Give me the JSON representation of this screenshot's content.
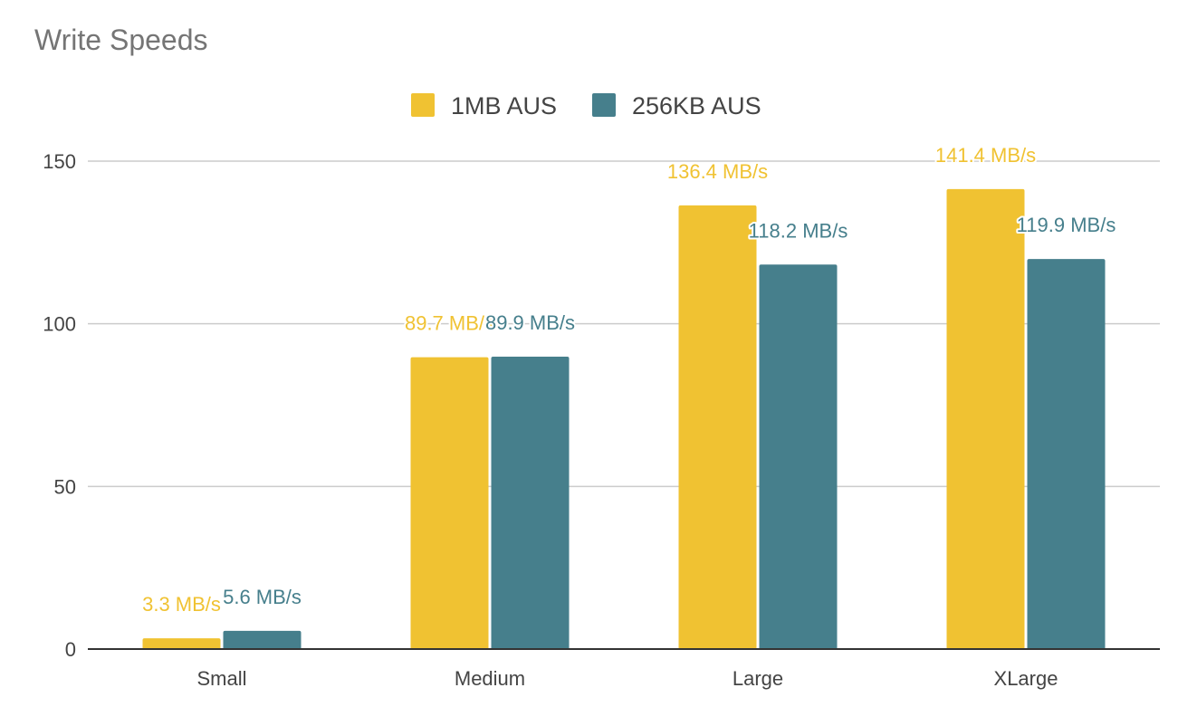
{
  "chart_data": {
    "type": "bar",
    "title": "Write Speeds",
    "xlabel": "",
    "ylabel": "",
    "categories": [
      "Small",
      "Medium",
      "Large",
      "XLarge"
    ],
    "series": [
      {
        "name": "1MB AUS",
        "color": "#F0C232",
        "values": [
          3.3,
          89.7,
          136.4,
          141.4
        ],
        "data_labels": [
          "3.3 MB/s",
          "89.7 MB/s",
          "136.4 MB/s",
          "141.4 MB/s"
        ]
      },
      {
        "name": "256KB AUS",
        "color": "#467F8C",
        "values": [
          5.6,
          89.9,
          118.2,
          119.9
        ],
        "data_labels": [
          "5.6 MB/s",
          "89.9 MB/s",
          "118.2 MB/s",
          "119.9 MB/s"
        ]
      }
    ],
    "ylim": [
      0,
      150
    ],
    "yticks": [
      0,
      50,
      100,
      150
    ],
    "grid": true,
    "legend_position": "top-center"
  }
}
